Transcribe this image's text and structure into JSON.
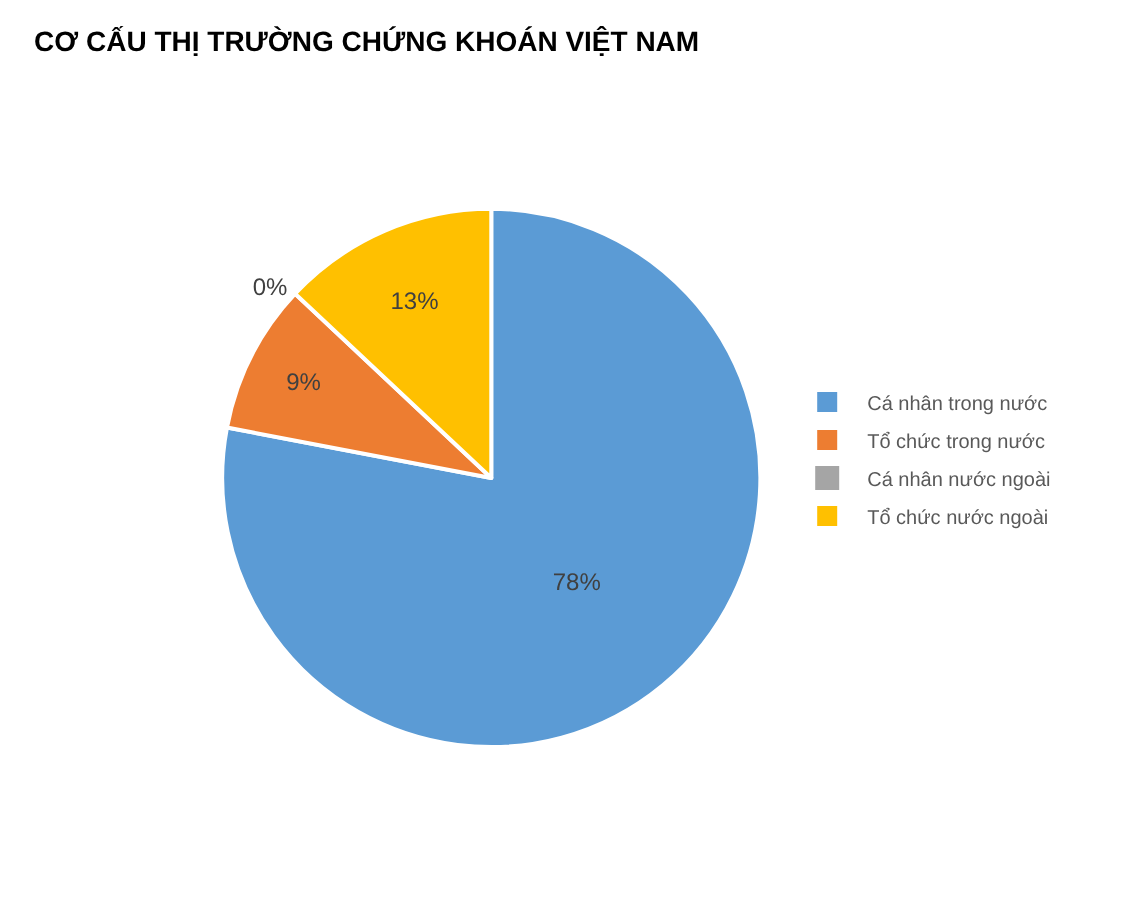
{
  "chart_data": {
    "type": "pie",
    "title": "CƠ CẤU THỊ TRƯỜNG CHỨNG KHOÁN VIỆT NAM",
    "categories": [
      "Cá nhân trong nước",
      "Tổ chức trong nước",
      "Cá nhân nước ngoài",
      "Tổ chức nước ngoài"
    ],
    "values": [
      78,
      9,
      0,
      13
    ],
    "value_labels": [
      "78%",
      "9%",
      "0%",
      "13%"
    ],
    "colors": [
      "#5b9bd5",
      "#ed7d31",
      "#a5a5a5",
      "#ffc000"
    ],
    "legend": "right"
  }
}
